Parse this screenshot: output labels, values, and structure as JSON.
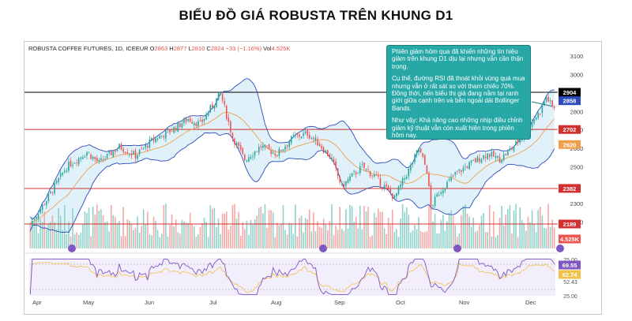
{
  "title": "BIỂU ĐỒ GIÁ ROBUSTA TRÊN KHUNG D1",
  "symbol": {
    "name": "ROBUSTA COFFEE FUTURES, 1D, ICEEUR",
    "open_label": "O",
    "open": "2863",
    "high_label": "H",
    "high": "2877",
    "low_label": "L",
    "low": "2810",
    "close_label": "C",
    "close": "2824",
    "change": "−33 (−1.16%)",
    "vol_label": "Vol",
    "volume": "4.525K"
  },
  "annotation": {
    "p1": "Phiên giảm hôm qua đã khiến những tín hiệu giảm trên khung D1 dịu lại nhưng vẫn cần thận trọng.",
    "p2": "Cụ thể, đường RSI đã thoát khỏi vùng quá mua nhưng vẫn ở rất sát so với tham chiếu 70%. Đồng thời, nến biểu thị giá đang nằm tại ranh giới giữa cạnh trên và bên ngoài dải Bollinger Bands.",
    "p3": "Như vậy: Khả năng cao những nhịp điều chỉnh giảm kỹ thuật vẫn còn xuất hiện trong phiên hôm nay."
  },
  "colors": {
    "up": "#26a69a",
    "down": "#ef5350",
    "band": "#2e4bbd",
    "band_fill": "#dbeef9",
    "mid": "#f0a04b",
    "level_red": "#d32f2f",
    "level_black": "#000000",
    "rsi": "#7e57c2",
    "annotation_bg": "#27a8a6"
  },
  "chart_data": {
    "type": "candlestick",
    "x_ticks": [
      "Apr",
      "May",
      "Jun",
      "Jul",
      "Aug",
      "Sep",
      "Oct",
      "Nov",
      "Dec"
    ],
    "y_ticks": [
      3100,
      3000,
      2800,
      2700,
      2600,
      2500,
      2300,
      2200
    ],
    "ylim": [
      2125,
      3135
    ],
    "close_path": [
      [
        0,
        2190
      ],
      [
        8,
        2320
      ],
      [
        18,
        2500
      ],
      [
        28,
        2580
      ],
      [
        34,
        2520
      ],
      [
        44,
        2610
      ],
      [
        52,
        2560
      ],
      [
        60,
        2640
      ],
      [
        70,
        2700
      ],
      [
        78,
        2760
      ],
      [
        84,
        2730
      ],
      [
        94,
        2900
      ],
      [
        100,
        2660
      ],
      [
        106,
        2540
      ],
      [
        114,
        2610
      ],
      [
        122,
        2570
      ],
      [
        130,
        2660
      ],
      [
        137,
        2680
      ],
      [
        143,
        2620
      ],
      [
        149,
        2540
      ],
      [
        154,
        2390
      ],
      [
        158,
        2440
      ],
      [
        164,
        2500
      ],
      [
        170,
        2450
      ],
      [
        176,
        2380
      ],
      [
        180,
        2330
      ],
      [
        184,
        2420
      ],
      [
        188,
        2500
      ],
      [
        192,
        2600
      ],
      [
        196,
        2480
      ],
      [
        198,
        2280
      ],
      [
        202,
        2360
      ],
      [
        210,
        2460
      ],
      [
        218,
        2520
      ],
      [
        226,
        2570
      ],
      [
        232,
        2540
      ],
      [
        238,
        2600
      ],
      [
        244,
        2680
      ],
      [
        249,
        2760
      ],
      [
        252,
        2800
      ],
      [
        255,
        2880
      ],
      [
        258,
        2824
      ]
    ],
    "levels": [
      {
        "label": "2904",
        "value": 2904,
        "style": "black"
      },
      {
        "label": "2702",
        "value": 2702,
        "style": "red"
      },
      {
        "label": "2382",
        "value": 2382,
        "style": "red"
      },
      {
        "label": "2189",
        "value": 2189,
        "style": "red"
      }
    ],
    "price_tags": [
      {
        "label": "2858",
        "value": 2858,
        "color": "#2e4bbd"
      },
      {
        "label": "2620",
        "value": 2620,
        "color": "#f0a04b"
      }
    ],
    "volume_tag": "4.525K",
    "rsi": {
      "ticks": [
        "75.00",
        "62.44",
        "52.43",
        "25.00"
      ],
      "tags": [
        {
          "label": "69.55",
          "color": "#7e57c2"
        },
        {
          "label": "62.74",
          "color": "#f0c24b"
        }
      ]
    }
  }
}
